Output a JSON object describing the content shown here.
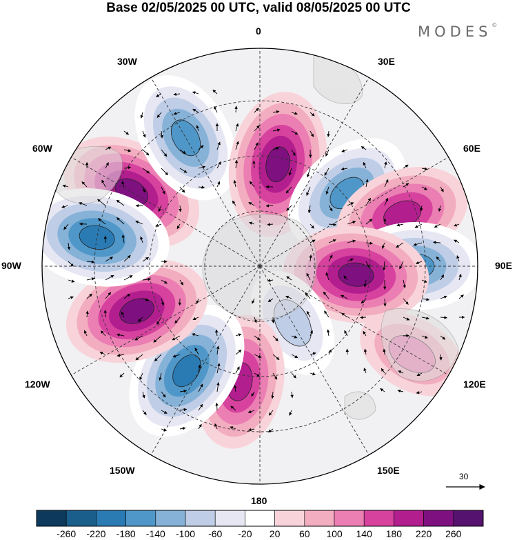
{
  "header": {
    "title": "Base 02/05/2025 00 UTC, valid 08/05/2025 00 UTC",
    "brand": "MODES",
    "brand_mark": "©"
  },
  "map": {
    "projection": "south polar stereographic",
    "longitude_labels": {
      "top": "0",
      "bottom": "180",
      "left": "90W",
      "right": "90E",
      "upper_left_1": "30W",
      "upper_left_2": "60W",
      "upper_right_1": "30E",
      "upper_right_2": "60E",
      "lower_left_1": "120W",
      "lower_left_2": "150W",
      "lower_right_1": "120E",
      "lower_right_2": "150E"
    },
    "reference_vector_label": "30",
    "anomaly_centers": [
      {
        "sign": "positive",
        "value": 240,
        "near": "60W"
      },
      {
        "sign": "negative",
        "value": -200,
        "near": "30W"
      },
      {
        "sign": "positive",
        "value": 240,
        "near": "10E"
      },
      {
        "sign": "negative",
        "value": -200,
        "near": "50E"
      },
      {
        "sign": "positive",
        "value": 200,
        "near": "70E"
      },
      {
        "sign": "negative",
        "value": -220,
        "near": "90E"
      },
      {
        "sign": "positive",
        "value": 240,
        "near": "95E"
      },
      {
        "sign": "positive",
        "value": 120,
        "near": "120E"
      },
      {
        "sign": "negative",
        "value": -140,
        "near": "150E"
      },
      {
        "sign": "positive",
        "value": 220,
        "near": "170W"
      },
      {
        "sign": "negative",
        "value": -260,
        "near": "145W"
      },
      {
        "sign": "positive",
        "value": 240,
        "near": "110W"
      },
      {
        "sign": "negative",
        "value": -260,
        "near": "80W"
      }
    ]
  },
  "colorbar": {
    "labels": [
      "-260",
      "-220",
      "-180",
      "-140",
      "-100",
      "-60",
      "-20",
      "20",
      "60",
      "100",
      "140",
      "180",
      "220",
      "260"
    ],
    "colors": [
      "#0d3a5c",
      "#1a5f8c",
      "#2a7bb4",
      "#4f97c8",
      "#86b2d8",
      "#bfcde6",
      "#e6e7f3",
      "#ffffff",
      "#f8d4da",
      "#f3adc0",
      "#eb7eb2",
      "#d6429e",
      "#b21e8e",
      "#7e1080",
      "#55126e"
    ]
  }
}
